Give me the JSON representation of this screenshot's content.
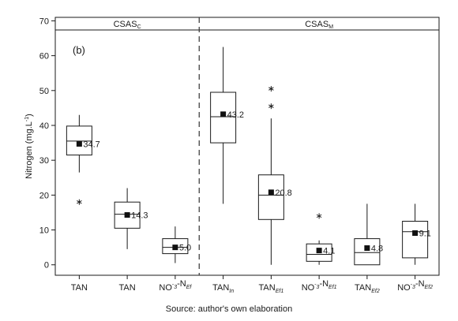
{
  "chart_data": {
    "type": "boxplot",
    "panel_label": "(b)",
    "ylabel_main": "Nitrogen (mg.L",
    "ylabel_sup": "-1",
    "ylabel_tail": ")",
    "ylim": [
      -3,
      71
    ],
    "yticks": [
      0,
      10,
      20,
      30,
      40,
      50,
      60,
      70
    ],
    "grid": false,
    "groups": [
      {
        "main": "CSAS",
        "sub": "C",
        "n_boxes": 3
      },
      {
        "main": "CSAS",
        "sub": "M",
        "n_boxes": 5
      }
    ],
    "categories": [
      {
        "parts": [
          [
            "TAN",
            "n"
          ],
          [
            "",
            "In"
          ]
        ]
      },
      {
        "parts": [
          [
            "TAN",
            "n"
          ],
          [
            "",
            "Ef"
          ]
        ]
      },
      {
        "parts": [
          [
            "NO",
            "n"
          ],
          [
            "-",
            "sup"
          ],
          [
            "",
            "n"
          ],
          [
            "3",
            "sub"
          ],
          [
            "-N",
            "n"
          ],
          [
            "Ef",
            "sub"
          ]
        ]
      },
      {
        "parts": [
          [
            "TAN",
            "n"
          ],
          [
            "In",
            "sub"
          ]
        ]
      },
      {
        "parts": [
          [
            "TAN",
            "n"
          ],
          [
            "Ef1",
            "sub"
          ]
        ]
      },
      {
        "parts": [
          [
            "NO",
            "n"
          ],
          [
            "-",
            "sup"
          ],
          [
            "",
            "n"
          ],
          [
            "3",
            "sub"
          ],
          [
            "-N",
            "n"
          ],
          [
            "Ef1",
            "sub"
          ]
        ]
      },
      {
        "parts": [
          [
            "TAN",
            "n"
          ],
          [
            "Ef2",
            "sub"
          ]
        ]
      },
      {
        "parts": [
          [
            "NO",
            "n"
          ],
          [
            "-",
            "sup"
          ],
          [
            "",
            "n"
          ],
          [
            "3",
            "sub"
          ],
          [
            "-N",
            "n"
          ],
          [
            "Ef2",
            "sub"
          ]
        ]
      }
    ],
    "boxes": [
      {
        "whisker_low": 26.5,
        "q1": 31.5,
        "median": 35.5,
        "q3": 39.8,
        "whisker_high": 43.0,
        "mean": 34.7,
        "mean_label": "34.7",
        "outliers": [
          18.0
        ]
      },
      {
        "whisker_low": 4.5,
        "q1": 10.5,
        "median": 14.5,
        "q3": 18.0,
        "whisker_high": 22.0,
        "mean": 14.3,
        "mean_label": "14.3",
        "outliers": []
      },
      {
        "whisker_low": 0.5,
        "q1": 3.2,
        "median": 5.0,
        "q3": 7.5,
        "whisker_high": 11.0,
        "mean": 5.0,
        "mean_label": "5.0",
        "outliers": []
      },
      {
        "whisker_low": 17.5,
        "q1": 35.0,
        "median": 42.5,
        "q3": 49.5,
        "whisker_high": 62.5,
        "mean": 43.2,
        "mean_label": "43.2",
        "outliers": []
      },
      {
        "whisker_low": 0.0,
        "q1": 13.0,
        "median": 20.0,
        "q3": 25.8,
        "whisker_high": 42.0,
        "mean": 20.8,
        "mean_label": "20.8",
        "outliers": [
          45.5,
          50.5
        ]
      },
      {
        "whisker_low": 0.0,
        "q1": 1.0,
        "median": 3.0,
        "q3": 6.0,
        "whisker_high": 7.0,
        "mean": 4.1,
        "mean_label": "4.1",
        "outliers": [
          14.0
        ]
      },
      {
        "whisker_low": 0.0,
        "q1": 0.0,
        "median": 3.5,
        "q3": 7.5,
        "whisker_high": 17.5,
        "mean": 4.8,
        "mean_label": "4.8",
        "outliers": []
      },
      {
        "whisker_low": 0.0,
        "q1": 2.0,
        "median": 9.5,
        "q3": 12.5,
        "whisker_high": 17.5,
        "mean": 9.1,
        "mean_label": "9.1",
        "outliers": []
      }
    ],
    "colors": {
      "box_fill": "#ffffff",
      "stroke": "#1a1a1a",
      "mean_marker": "#111111",
      "divider": "#333333"
    }
  },
  "source_note": "Source: author's own elaboration"
}
